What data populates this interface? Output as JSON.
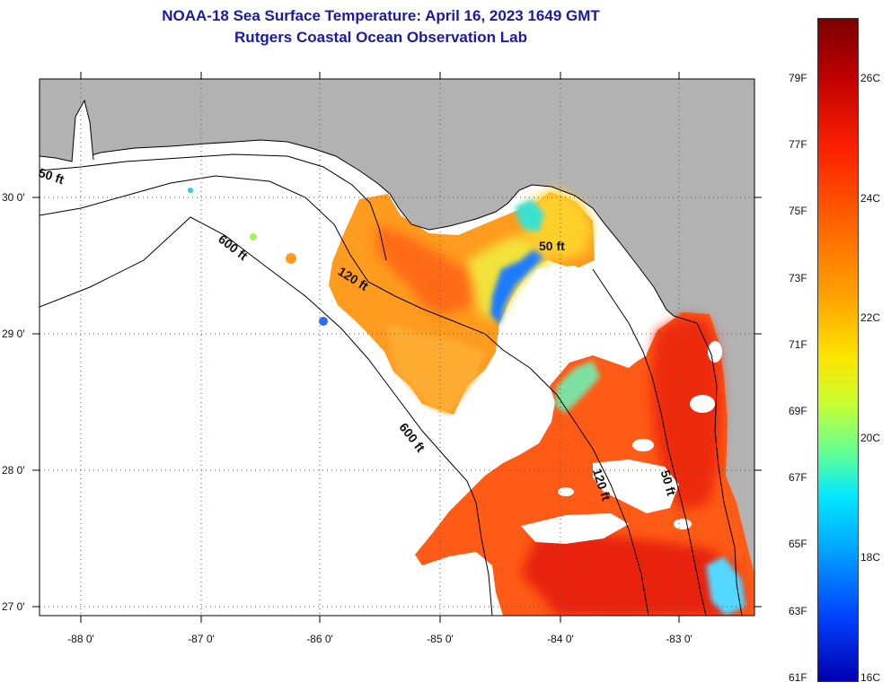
{
  "title": {
    "line1": "NOAA-18 Sea Surface Temperature:  April 16, 2023 1649 GMT",
    "line2": "Rutgers Coastal Ocean Observation Lab"
  },
  "map": {
    "latitude_labels": [
      "30 0'",
      "29 0'",
      "28 0'",
      "27 0'"
    ],
    "longitude_labels": [
      "-88 0'",
      "-87 0'",
      "-86 0'",
      "-85 0'",
      "-84 0'",
      "-83 0'"
    ],
    "depth_contours": {
      "c50_west": "50 ft",
      "c600_north": "600 ft",
      "c120": "120 ft",
      "c50_bigbend": "50 ft",
      "c600_south": "600 ft",
      "c120_south": "120 ft",
      "c50_south": "50 ft"
    },
    "colors": {
      "land": "#b2b2b2",
      "cloud_or_no_data": "#ffffff",
      "grid": "#555555"
    }
  },
  "colorbar": {
    "fahrenheit": [
      "79F",
      "77F",
      "75F",
      "73F",
      "71F",
      "69F",
      "67F",
      "65F",
      "63F",
      "61F"
    ],
    "celsius": [
      "26C",
      "24C",
      "22C",
      "20C",
      "18C",
      "16C"
    ]
  }
}
